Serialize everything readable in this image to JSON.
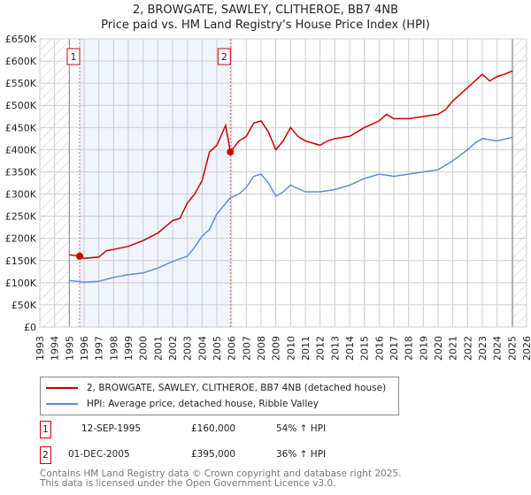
{
  "chart_data": {
    "type": "line",
    "title": "2, BROWGATE, SAWLEY, CLITHEROE, BB7 4NB",
    "subtitle": "Price paid vs. HM Land Registry's House Price Index (HPI)",
    "xlim": [
      1993,
      2026
    ],
    "ylim": [
      0,
      650000
    ],
    "x_ticks": [
      "1993",
      "1994",
      "1995",
      "1996",
      "1997",
      "1998",
      "1999",
      "2000",
      "2001",
      "2002",
      "2003",
      "2004",
      "2005",
      "2006",
      "2007",
      "2008",
      "2009",
      "2010",
      "2011",
      "2012",
      "2013",
      "2014",
      "2015",
      "2016",
      "2017",
      "2018",
      "2019",
      "2020",
      "2021",
      "2022",
      "2023",
      "2024",
      "2025",
      "2026"
    ],
    "y_ticks": [
      {
        "v": 0,
        "label": "£0"
      },
      {
        "v": 50000,
        "label": "£50K"
      },
      {
        "v": 100000,
        "label": "£100K"
      },
      {
        "v": 150000,
        "label": "£150K"
      },
      {
        "v": 200000,
        "label": "£200K"
      },
      {
        "v": 250000,
        "label": "£250K"
      },
      {
        "v": 300000,
        "label": "£300K"
      },
      {
        "v": 350000,
        "label": "£350K"
      },
      {
        "v": 400000,
        "label": "£400K"
      },
      {
        "v": 450000,
        "label": "£450K"
      },
      {
        "v": 500000,
        "label": "£500K"
      },
      {
        "v": 550000,
        "label": "£550K"
      },
      {
        "v": 600000,
        "label": "£600K"
      },
      {
        "v": 650000,
        "label": "£650K"
      }
    ],
    "grid": true,
    "series": [
      {
        "name": "2, BROWGATE, SAWLEY, CLITHEROE, BB7 4NB (detached house)",
        "color": "#cc0000",
        "x": [
          1995,
          1995.7,
          1996,
          1997,
          1997.5,
          1998,
          1999,
          2000,
          2001,
          2002,
          2002.5,
          2003,
          2003.5,
          2004,
          2004.5,
          2005,
          2005.6,
          2005.92,
          2006.5,
          2007,
          2007.5,
          2008,
          2008.5,
          2009,
          2009.5,
          2010,
          2010.5,
          2011,
          2012,
          2012.5,
          2013,
          2014,
          2014.5,
          2015,
          2016,
          2016.5,
          2017,
          2018,
          2019,
          2020,
          2020.5,
          2021,
          2022,
          2022.5,
          2023,
          2023.5,
          2024,
          2024.5,
          2025.05
        ],
        "y": [
          163000,
          160000,
          155000,
          158000,
          172000,
          175000,
          182000,
          195000,
          212000,
          240000,
          245000,
          280000,
          300000,
          330000,
          395000,
          410000,
          455000,
          395000,
          420000,
          430000,
          460000,
          465000,
          440000,
          400000,
          420000,
          450000,
          430000,
          420000,
          410000,
          420000,
          425000,
          430000,
          440000,
          450000,
          465000,
          480000,
          470000,
          470000,
          475000,
          480000,
          490000,
          510000,
          540000,
          555000,
          570000,
          555000,
          565000,
          570000,
          578000
        ]
      },
      {
        "name": "HPI: Average price, detached house, Ribble Valley",
        "color": "#5b8fd4",
        "x": [
          1995,
          1996,
          1997,
          1998,
          1999,
          2000,
          2001,
          2002,
          2003,
          2003.5,
          2004,
          2004.5,
          2005,
          2005.92,
          2006.5,
          2007,
          2007.5,
          2008,
          2008.5,
          2009,
          2009.5,
          2010,
          2011,
          2012,
          2013,
          2014,
          2015,
          2016,
          2017,
          2018,
          2019,
          2020,
          2021,
          2022,
          2022.5,
          2023,
          2024,
          2025.05
        ],
        "y": [
          105000,
          101000,
          103000,
          112000,
          118000,
          122000,
          133000,
          148000,
          160000,
          180000,
          205000,
          220000,
          255000,
          292000,
          300000,
          315000,
          340000,
          345000,
          325000,
          295000,
          305000,
          320000,
          305000,
          305000,
          310000,
          320000,
          335000,
          345000,
          340000,
          345000,
          350000,
          355000,
          375000,
          400000,
          415000,
          425000,
          420000,
          428000
        ]
      }
    ],
    "annotations": [
      {
        "label": "1",
        "x": 1995.7,
        "y": 160000
      },
      {
        "label": "2",
        "x": 2005.92,
        "y": 395000
      }
    ]
  },
  "legend": {
    "items": [
      "2, BROWGATE, SAWLEY, CLITHEROE, BB7 4NB (detached house)",
      "HPI: Average price, detached house, Ribble Valley"
    ]
  },
  "sales": [
    {
      "num": "1",
      "date": "12-SEP-1995",
      "price": "£160,000",
      "hpi": "54% ↑ HPI"
    },
    {
      "num": "2",
      "date": "01-DEC-2005",
      "price": "£395,000",
      "hpi": "36% ↑ HPI"
    }
  ],
  "footer": {
    "line1": "Contains HM Land Registry data © Crown copyright and database right 2025.",
    "line2": "This data is licensed under the Open Government Licence v3.0."
  }
}
